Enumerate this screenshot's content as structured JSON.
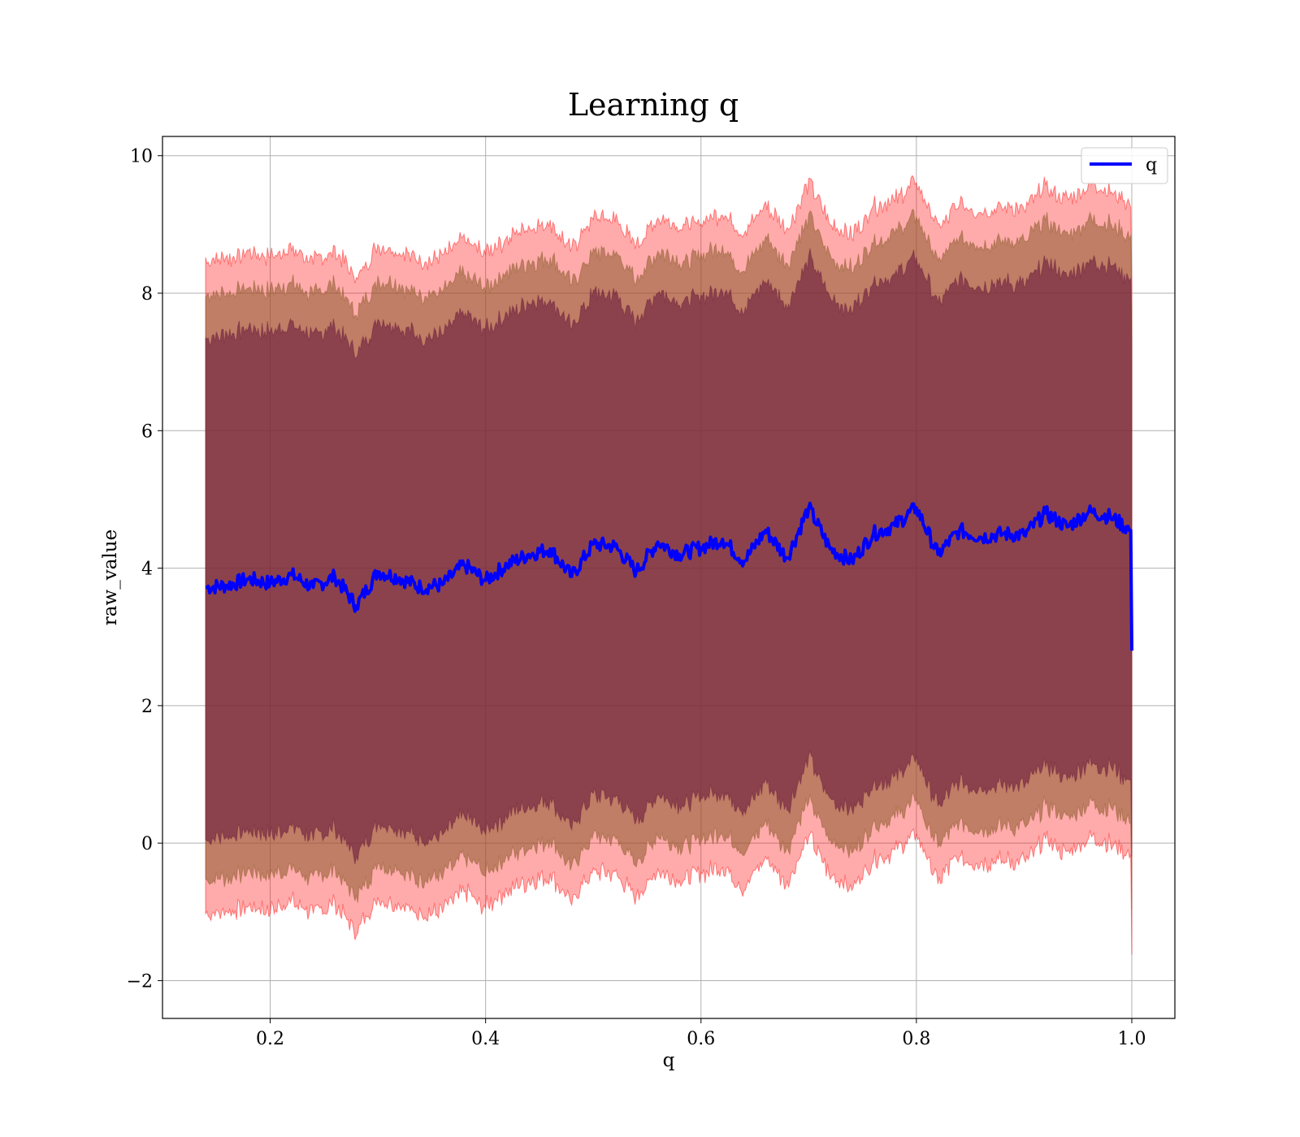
{
  "chart_data": {
    "type": "line",
    "title": "Learning q",
    "xlabel": "q",
    "ylabel": "raw_value",
    "xlim": [
      0.1,
      1.04
    ],
    "ylim": [
      -2.55,
      10.28
    ],
    "x_ticks": [
      0.2,
      0.4,
      0.6,
      0.8,
      1.0
    ],
    "x_tick_labels": [
      "0.2",
      "0.4",
      "0.6",
      "0.8",
      "1.0"
    ],
    "y_ticks": [
      -2,
      0,
      2,
      4,
      6,
      8,
      10
    ],
    "y_tick_labels": [
      "−2",
      "0",
      "2",
      "4",
      "6",
      "8",
      "10"
    ],
    "grid": true,
    "legend": {
      "position": "top-right",
      "entries": [
        "q"
      ]
    },
    "colors": {
      "line": "#0000ff",
      "band_outer": "#ff0000",
      "band_middle": "#8b5a2b",
      "band_inner": "#6b1a3c"
    },
    "series": [
      {
        "name": "q",
        "x": [
          0.14,
          0.16,
          0.18,
          0.2,
          0.22,
          0.24,
          0.26,
          0.28,
          0.3,
          0.32,
          0.34,
          0.36,
          0.38,
          0.4,
          0.42,
          0.44,
          0.46,
          0.48,
          0.5,
          0.52,
          0.54,
          0.56,
          0.58,
          0.6,
          0.62,
          0.64,
          0.66,
          0.68,
          0.7,
          0.72,
          0.74,
          0.76,
          0.78,
          0.8,
          0.82,
          0.84,
          0.86,
          0.88,
          0.9,
          0.92,
          0.94,
          0.96,
          0.98,
          0.999,
          1.0
        ],
        "y": [
          3.72,
          3.75,
          3.84,
          3.78,
          3.9,
          3.72,
          3.88,
          3.45,
          3.95,
          3.86,
          3.72,
          3.76,
          4.05,
          3.82,
          4.05,
          4.2,
          4.28,
          3.88,
          4.35,
          4.32,
          3.95,
          4.38,
          4.2,
          4.3,
          4.42,
          4.1,
          4.55,
          4.15,
          4.88,
          4.28,
          4.1,
          4.5,
          4.62,
          4.88,
          4.2,
          4.55,
          4.45,
          4.5,
          4.48,
          4.8,
          4.6,
          4.82,
          4.75,
          4.55,
          2.8
        ]
      }
    ],
    "bands": [
      {
        "name": "outer",
        "half_width": 4.75
      },
      {
        "name": "middle",
        "half_width": 4.25
      },
      {
        "name": "inner",
        "half_width": 3.65
      }
    ]
  }
}
